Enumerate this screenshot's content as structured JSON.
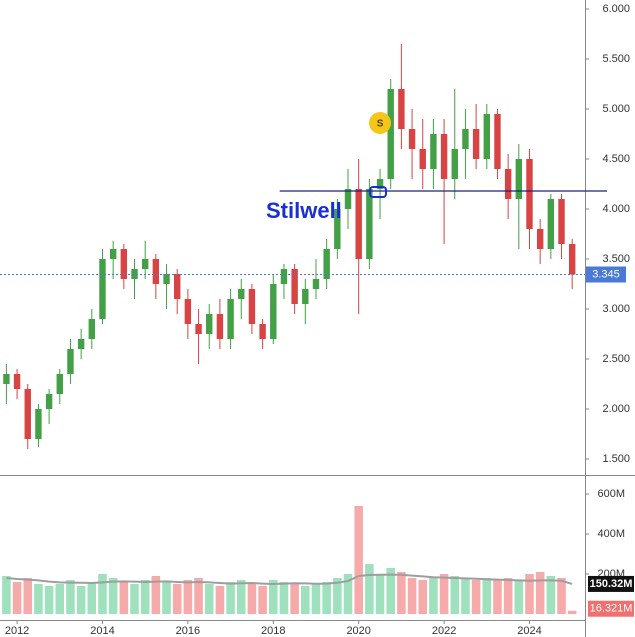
{
  "chart_data": [
    {
      "type": "candlestick",
      "x": [
        2011.75,
        2012,
        2012.25,
        2012.5,
        2012.75,
        2013,
        2013.25,
        2013.5,
        2013.75,
        2014,
        2014.25,
        2014.5,
        2014.75,
        2015,
        2015.25,
        2015.5,
        2015.75,
        2016,
        2016.25,
        2016.5,
        2016.75,
        2017,
        2017.25,
        2017.5,
        2017.75,
        2018,
        2018.25,
        2018.5,
        2018.75,
        2019,
        2019.25,
        2019.5,
        2019.75,
        2020,
        2020.25,
        2020.5,
        2020.75,
        2021,
        2021.25,
        2021.5,
        2021.75,
        2022,
        2022.25,
        2022.5,
        2022.75,
        2023,
        2023.25,
        2023.5,
        2023.75,
        2024,
        2024.25,
        2024.5,
        2024.75,
        2025
      ],
      "open": [
        2.25,
        2.35,
        2.2,
        1.7,
        2.0,
        2.15,
        2.35,
        2.6,
        2.7,
        2.9,
        3.5,
        3.6,
        3.3,
        3.4,
        3.5,
        3.25,
        3.35,
        3.1,
        2.85,
        2.75,
        2.95,
        2.7,
        3.1,
        3.2,
        2.85,
        2.7,
        3.25,
        3.4,
        3.05,
        3.2,
        3.3,
        3.6,
        4.0,
        4.2,
        3.5,
        4.2,
        4.3,
        5.2,
        4.8,
        4.6,
        4.4,
        4.75,
        4.3,
        4.6,
        4.8,
        4.5,
        4.95,
        4.4,
        4.1,
        4.5,
        3.8,
        3.6,
        4.1,
        3.65
      ],
      "high": [
        2.45,
        2.4,
        2.25,
        2.05,
        2.2,
        2.4,
        2.7,
        2.8,
        3.0,
        3.6,
        3.68,
        3.65,
        3.5,
        3.68,
        3.55,
        3.45,
        3.4,
        3.2,
        3.0,
        3.05,
        3.1,
        3.2,
        3.3,
        3.25,
        2.9,
        3.35,
        3.45,
        3.45,
        3.3,
        3.5,
        3.7,
        4.1,
        4.4,
        4.5,
        4.3,
        4.4,
        5.3,
        5.65,
        5.0,
        4.9,
        4.9,
        4.9,
        5.2,
        5.0,
        5.05,
        5.05,
        5.0,
        4.55,
        4.65,
        4.6,
        3.9,
        4.15,
        4.15,
        3.7
      ],
      "low": [
        2.05,
        2.1,
        1.6,
        1.62,
        1.85,
        2.05,
        2.25,
        2.5,
        2.6,
        2.85,
        3.3,
        3.2,
        3.1,
        3.3,
        3.1,
        3.0,
        2.95,
        2.7,
        2.45,
        2.6,
        2.6,
        2.6,
        2.9,
        2.75,
        2.6,
        2.65,
        3.1,
        2.95,
        2.85,
        3.1,
        3.2,
        3.5,
        3.8,
        2.95,
        3.4,
        3.9,
        4.2,
        4.6,
        4.3,
        4.2,
        4.2,
        3.65,
        4.1,
        4.3,
        4.4,
        4.4,
        4.3,
        3.9,
        3.6,
        3.6,
        3.45,
        3.5,
        3.5,
        3.2
      ],
      "close": [
        2.35,
        2.2,
        1.7,
        2.0,
        2.15,
        2.35,
        2.6,
        2.7,
        2.9,
        3.5,
        3.6,
        3.3,
        3.4,
        3.5,
        3.25,
        3.35,
        3.1,
        2.85,
        2.75,
        2.95,
        2.7,
        3.1,
        3.2,
        2.85,
        2.7,
        3.25,
        3.4,
        3.05,
        3.2,
        3.3,
        3.6,
        4.0,
        4.2,
        3.5,
        4.2,
        4.3,
        5.2,
        4.8,
        4.6,
        4.4,
        4.75,
        4.3,
        4.6,
        4.8,
        4.5,
        4.95,
        4.4,
        4.1,
        4.5,
        3.8,
        3.6,
        4.1,
        3.65,
        3.345
      ],
      "up_color": "#43a047",
      "down_color": "#d84343",
      "xlim": [
        2011.6,
        2025.3
      ],
      "ylim": [
        1.34,
        6.09
      ],
      "yticks": [
        {
          "value": 1.5,
          "label": "1.500"
        },
        {
          "value": 2,
          "label": "2.000"
        },
        {
          "value": 2.5,
          "label": "2.500"
        },
        {
          "value": 3,
          "label": "3.000"
        },
        {
          "value": 3.5,
          "label": "3.500"
        },
        {
          "value": 4,
          "label": "4.000"
        },
        {
          "value": 4.5,
          "label": "4.500"
        },
        {
          "value": 5,
          "label": "5.000"
        },
        {
          "value": 5.5,
          "label": "5.500"
        },
        {
          "value": 6,
          "label": "6.000"
        }
      ],
      "annotation_text": "Stilwell",
      "level": 4.18,
      "level_start_x": 2018.15,
      "marker_text": "S",
      "marker_x": 2020.5,
      "marker_y": 4.86,
      "last_price_color": "#4a7ad6"
    },
    {
      "type": "bar",
      "series": [
        {
          "name": "volume",
          "values": [
            190,
            160,
            180,
            150,
            140,
            150,
            170,
            140,
            160,
            200,
            180,
            160,
            150,
            170,
            190,
            160,
            150,
            170,
            180,
            150,
            140,
            160,
            170,
            150,
            140,
            170,
            160,
            150,
            140,
            150,
            160,
            180,
            200,
            540,
            250,
            200,
            230,
            210,
            180,
            170,
            180,
            200,
            190,
            180,
            170,
            180,
            170,
            180,
            170,
            200,
            210,
            190,
            180,
            16.321
          ],
          "up_color": "#9fe0bd",
          "down_color": "#f6aaaa"
        },
        {
          "name": "volume-ma",
          "values": [
            180,
            175,
            172,
            168,
            162,
            158,
            157,
            156,
            155,
            158,
            162,
            163,
            162,
            160,
            162,
            163,
            160,
            158,
            160,
            158,
            155,
            152,
            154,
            155,
            152,
            150,
            152,
            154,
            153,
            151,
            152,
            156,
            165,
            190,
            195,
            196,
            197,
            196,
            192,
            188,
            184,
            182,
            180,
            178,
            176,
            174,
            172,
            170,
            168,
            166,
            168,
            168,
            166,
            150.32
          ],
          "color": "#9e9e9e"
        }
      ],
      "xlim": [
        2011.6,
        2025.3
      ],
      "xticks": [
        2012,
        2014,
        2016,
        2018,
        2020,
        2022,
        2024
      ],
      "ylim": [
        0,
        700
      ],
      "yticks": [
        {
          "value": 200,
          "label": "200M"
        },
        {
          "value": 400,
          "label": "400M"
        },
        {
          "value": 600,
          "label": "600M"
        }
      ],
      "ma_last": {
        "value": 150.32,
        "label": "150.32M"
      },
      "volume_last": {
        "value": 16.321,
        "label": "16.321M"
      }
    }
  ]
}
